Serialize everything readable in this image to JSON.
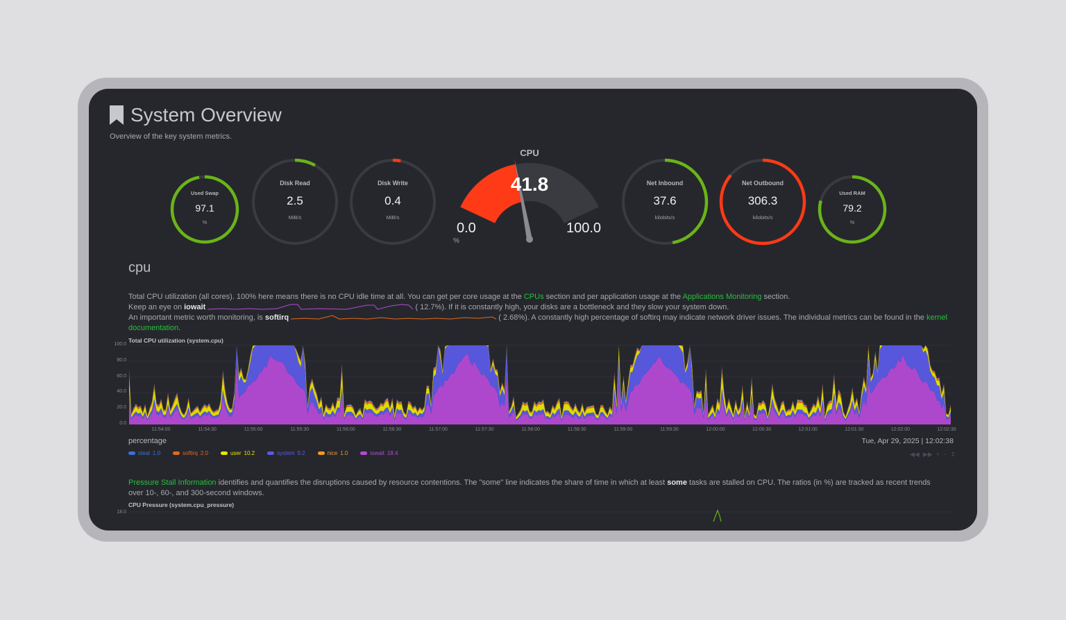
{
  "header": {
    "title": "System Overview",
    "subtitle": "Overview of the key system metrics."
  },
  "gauges": [
    {
      "label": "Used Swap",
      "value": "97.1",
      "unit": "%",
      "fraction": 0.971,
      "color": "#6ab419"
    },
    {
      "label": "Disk Read",
      "value": "2.5",
      "unit": "MiB/s",
      "fraction": 0.08,
      "color": "#6ab419"
    },
    {
      "label": "Disk Write",
      "value": "0.4",
      "unit": "MiB/s",
      "fraction": 0.03,
      "color": "#ff3a16"
    },
    {
      "label": "Net Inbound",
      "value": "37.6",
      "unit": "kilobits/s",
      "fraction": 0.47,
      "color": "#6ab419"
    },
    {
      "label": "Net Outbound",
      "value": "306.3",
      "unit": "kilobits/s",
      "fraction": 0.86,
      "color": "#ff3a16"
    },
    {
      "label": "Used RAM",
      "value": "79.2",
      "unit": "%",
      "fraction": 0.792,
      "color": "#6ab419"
    }
  ],
  "cpu_gauge": {
    "label": "CPU",
    "value": "41.8",
    "min": "0.0",
    "max": "100.0",
    "unit": "%",
    "fraction": 0.418,
    "color": "#ff3a16"
  },
  "cpu_section": {
    "title": "cpu",
    "desc1_a": "Total CPU utilization (all cores). 100% here means there is no CPU idle time at all. You can get per core usage at the ",
    "desc1_link1": "CPUs",
    "desc1_b": " section and per application usage at the ",
    "desc1_link2": "Applications Monitoring",
    "desc1_c": " section.",
    "desc2_a": "Keep an eye on ",
    "desc2_strong": "iowait",
    "desc2_b": "(      12.7%). If it is constantly high, your disks are a bottleneck and they slow your system down.",
    "desc3_a": "An important metric worth monitoring, is ",
    "desc3_strong": "softirq",
    "desc3_b": "(      2.68%). A constantly high percentage of softirq may indicate network driver issues. The individual metrics can be found in the ",
    "desc3_link": "kernel",
    "desc3_link2": "documentation",
    "desc3_c": "."
  },
  "cpu_chart": {
    "title": "Total CPU utilization (system.cpu)",
    "units": "percentage",
    "timestamp": "Tue, Apr 29, 2025 | 12:02:38",
    "yticks": [
      "100.0",
      "80.0",
      "60.0",
      "40.0",
      "20.0",
      "0.0"
    ],
    "xticks": [
      "11:54:00",
      "11:54:30",
      "11:55:00",
      "11:55:30",
      "11:56:00",
      "11:56:30",
      "11:57:00",
      "11:57:30",
      "11:58:00",
      "11:58:30",
      "11:59:00",
      "11:59:30",
      "12:00:00",
      "12:00:30",
      "12:01:00",
      "12:01:30",
      "12:02:00",
      "12:02:30"
    ],
    "legend": [
      {
        "name": "steal",
        "value": "1.0",
        "color": "#3d6fd6"
      },
      {
        "name": "softirq",
        "value": "2.0",
        "color": "#e56a1e"
      },
      {
        "name": "user",
        "value": "10.2",
        "color": "#e6e600"
      },
      {
        "name": "system",
        "value": "9.2",
        "color": "#5a5ae6"
      },
      {
        "name": "nice",
        "value": "1.0",
        "color": "#f29b1d"
      },
      {
        "name": "iowait",
        "value": "18.4",
        "color": "#b44ad6"
      }
    ]
  },
  "chart_data": {
    "type": "area",
    "title": "Total CPU utilization (system.cpu)",
    "ylabel": "percentage",
    "ylim": [
      0,
      100
    ],
    "x": [
      "11:54:00",
      "11:54:30",
      "11:55:00",
      "11:55:30",
      "11:56:00",
      "11:56:30",
      "11:57:00",
      "11:57:30",
      "11:58:00",
      "11:58:30",
      "11:59:00",
      "11:59:30",
      "12:00:00",
      "12:00:30",
      "12:01:00",
      "12:01:30",
      "12:02:00",
      "12:02:30"
    ],
    "series": [
      {
        "name": "iowait",
        "values": [
          14,
          18,
          16,
          90,
          15,
          17,
          16,
          90,
          15,
          14,
          16,
          88,
          15,
          17,
          14,
          16,
          90,
          16
        ]
      },
      {
        "name": "system",
        "values": [
          5,
          6,
          5,
          70,
          6,
          5,
          6,
          72,
          5,
          6,
          5,
          70,
          5,
          6,
          5,
          6,
          72,
          5
        ]
      },
      {
        "name": "user",
        "values": [
          8,
          9,
          8,
          6,
          9,
          8,
          9,
          6,
          8,
          9,
          8,
          6,
          9,
          8,
          9,
          8,
          6,
          8
        ]
      },
      {
        "name": "softirq",
        "values": [
          2,
          2,
          2,
          2,
          2,
          2,
          2,
          2,
          2,
          2,
          2,
          2,
          2,
          2,
          2,
          2,
          2,
          2
        ]
      },
      {
        "name": "nice",
        "values": [
          1,
          1,
          1,
          1,
          1,
          1,
          1,
          1,
          1,
          1,
          1,
          1,
          1,
          1,
          1,
          1,
          1,
          1
        ]
      },
      {
        "name": "steal",
        "values": [
          1,
          1,
          1,
          1,
          1,
          1,
          1,
          1,
          1,
          1,
          1,
          1,
          1,
          1,
          1,
          1,
          1,
          1
        ]
      }
    ]
  },
  "pressure_section": {
    "link": "Pressure Stall Information",
    "text_a": " identifies and quantifies the disruptions caused by resource contentions. The \"some\" line indicates the share of time in which at least ",
    "strong": "some",
    "text_b": " tasks are stalled on CPU. The ratios (in %) are tracked as recent trends over 10-, 60-, and 300-second windows.",
    "chart_title": "CPU Pressure (system.cpu_pressure)",
    "ytick": "18.0"
  },
  "toolbar_icons": [
    "rewind-icon",
    "forward-icon",
    "zoom-in-icon",
    "zoom-out-icon",
    "resize-icon"
  ]
}
